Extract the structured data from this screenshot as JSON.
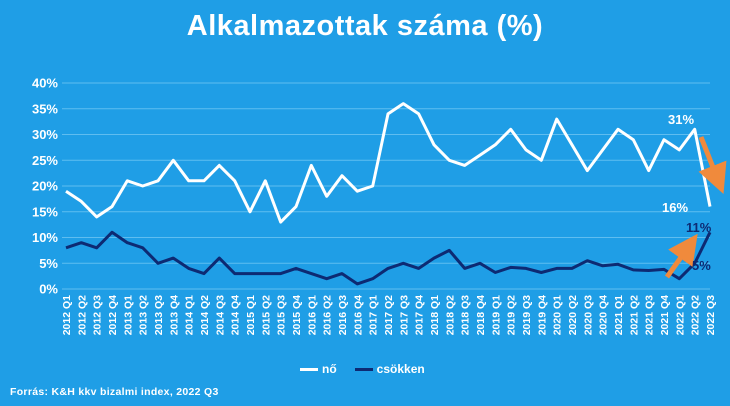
{
  "chart_data": {
    "type": "line",
    "title": "Alkalmazottak száma (%)",
    "ylim": [
      0,
      40
    ],
    "yticks": [
      "0%",
      "5%",
      "10%",
      "15%",
      "20%",
      "25%",
      "30%",
      "35%",
      "40%"
    ],
    "ytick_values": [
      0,
      5,
      10,
      15,
      20,
      25,
      30,
      35,
      40
    ],
    "grid": true,
    "legend_position": "bottom",
    "categories": [
      "2012 Q1",
      "2012 Q2",
      "2012 Q3",
      "2012 Q4",
      "2013 Q1",
      "2013 Q2",
      "2013 Q3",
      "2013 Q4",
      "2014 Q1",
      "2014 Q2",
      "2014 Q3",
      "2014 Q4",
      "2015 Q1",
      "2015 Q2",
      "2015 Q3",
      "2015 Q4",
      "2016 Q1",
      "2016 Q2",
      "2016 Q3",
      "2016 Q4",
      "2017 Q1",
      "2017 Q2",
      "2017 Q3",
      "2017 Q4",
      "2018 Q1",
      "2018 Q2",
      "2018 Q3",
      "2018 Q4",
      "2019 Q1",
      "2019 Q2",
      "2019 Q3",
      "2019 Q4",
      "2020 Q1",
      "2020 Q2",
      "2020 Q3",
      "2020 Q4",
      "2021 Q1",
      "2021 Q2",
      "2021 Q3",
      "2021 Q4",
      "2022 Q1",
      "2022 Q2",
      "2022 Q3"
    ],
    "series": [
      {
        "name": "nő",
        "color": "#ffffff",
        "values": [
          19,
          17,
          14,
          16,
          21,
          20,
          21,
          25,
          21,
          21,
          24,
          21,
          15,
          21,
          13,
          16,
          24,
          18,
          22,
          19,
          20,
          34,
          36,
          34,
          28,
          25,
          24,
          26,
          28,
          31,
          27,
          25,
          33,
          28,
          23,
          27,
          31,
          29,
          23,
          29,
          27,
          31,
          16
        ]
      },
      {
        "name": "csökken",
        "color": "#0d2a73",
        "values": [
          8,
          9,
          8,
          11,
          9,
          8,
          5,
          6,
          4,
          3,
          6,
          3,
          3,
          3,
          3,
          4,
          3,
          2,
          3,
          1,
          2,
          4,
          5,
          4,
          6,
          7.5,
          4,
          5,
          3.2,
          4.2,
          4,
          3.2,
          4,
          4,
          5.5,
          4.5,
          4.8,
          3.7,
          3.6,
          3.8,
          2,
          5,
          11
        ]
      }
    ],
    "annotations": [
      "31%",
      "16%",
      "11%",
      "5%"
    ]
  },
  "source": "Forrás:  K&H kkv bizalmi index,  2022  Q3",
  "colors": {
    "background": "#1f9ee6",
    "arrow": "#f08a3c",
    "grid": "#5fbdf0"
  }
}
